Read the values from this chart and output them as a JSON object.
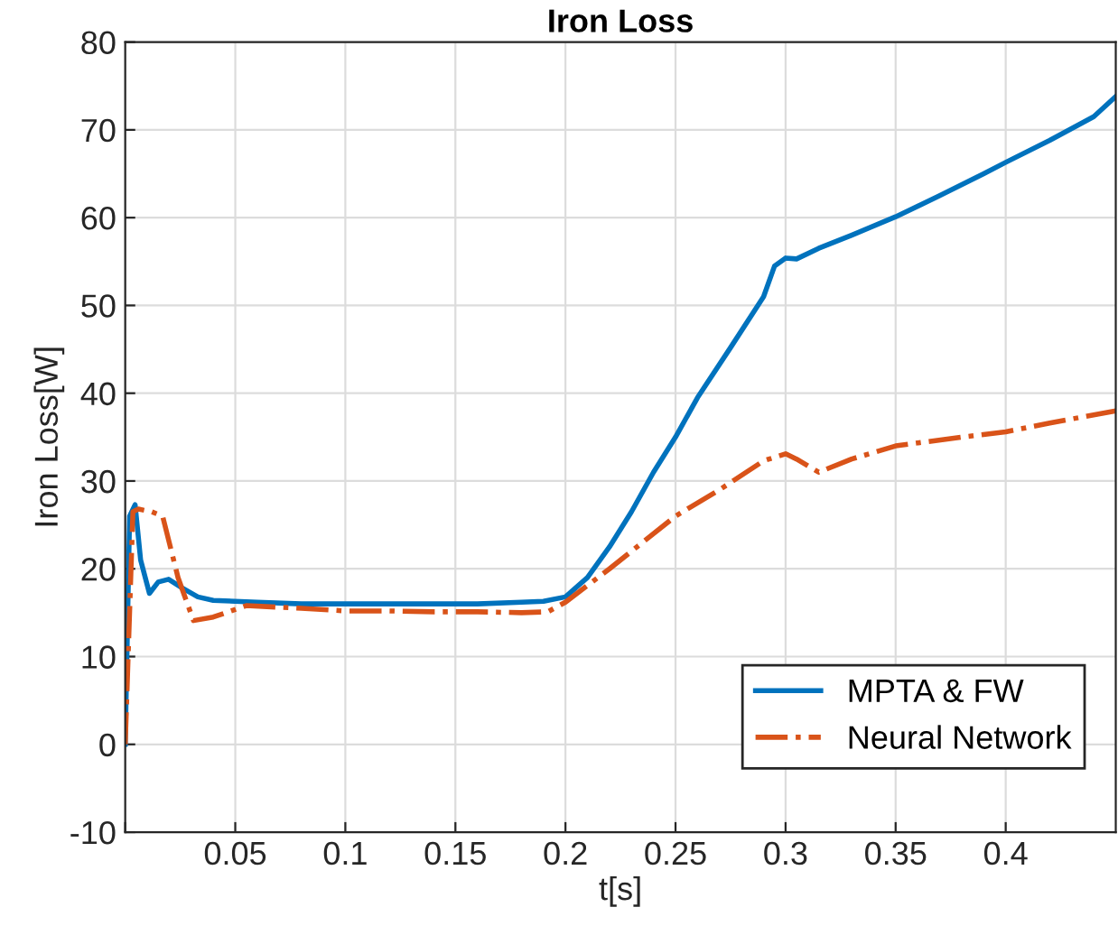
{
  "chart_data": {
    "type": "line",
    "title": "Iron Loss",
    "xlabel": "t[s]",
    "ylabel": "Iron Loss[W]",
    "xlim": [
      0,
      0.45
    ],
    "xticks": [
      {
        "value": 0,
        "label": null
      },
      0.05,
      0.1,
      0.15,
      0.2,
      0.25,
      0.3,
      0.35,
      0.4
    ],
    "ylim": [
      -10,
      80
    ],
    "yticks": [
      -10,
      0,
      10,
      20,
      30,
      40,
      50,
      60,
      70,
      80
    ],
    "grid": true,
    "legend": "bottom right",
    "series": [
      {
        "name": "MPTA & FW",
        "color": "#0072bd",
        "line_style": "solid",
        "x": [
          0,
          0.002,
          0.0045,
          0.007,
          0.011,
          0.015,
          0.0197,
          0.026,
          0.033,
          0.04,
          0.06,
          0.08,
          0.1,
          0.12,
          0.14,
          0.16,
          0.18,
          0.19,
          0.2,
          0.21,
          0.22,
          0.23,
          0.24,
          0.25,
          0.26,
          0.275,
          0.29,
          0.295,
          0.3,
          0.305,
          0.315,
          0.33,
          0.35,
          0.37,
          0.39,
          0.4,
          0.42,
          0.44,
          0.45
        ],
        "values": [
          0,
          26,
          27.3,
          21,
          17.2,
          18.5,
          18.8,
          17.8,
          16.8,
          16.4,
          16.2,
          16,
          16,
          16,
          16,
          16,
          16.2,
          16.3,
          16.8,
          19,
          22.5,
          26.5,
          31,
          35,
          39.5,
          45.2,
          51,
          54.5,
          55.4,
          55.3,
          56.5,
          58,
          60.1,
          62.5,
          65,
          66.3,
          68.8,
          71.5,
          73.8
        ]
      },
      {
        "name": "Neural Network",
        "color": "#d95319",
        "line_style": "dashed",
        "x": [
          0,
          0.0035,
          0.006,
          0.012,
          0.017,
          0.024,
          0.031,
          0.04,
          0.055,
          0.08,
          0.1,
          0.12,
          0.14,
          0.16,
          0.18,
          0.192,
          0.2,
          0.22,
          0.25,
          0.27,
          0.29,
          0.3,
          0.305,
          0.315,
          0.33,
          0.35,
          0.38,
          0.4,
          0.42,
          0.45
        ],
        "values": [
          0,
          26.5,
          26.8,
          26.5,
          26,
          19,
          14.1,
          14.5,
          15.8,
          15.5,
          15.2,
          15.2,
          15.1,
          15.1,
          15,
          15.1,
          16.2,
          20,
          26,
          29,
          32.3,
          33.1,
          32.5,
          31,
          32.5,
          34,
          35,
          35.6,
          36.6,
          38
        ]
      }
    ]
  }
}
